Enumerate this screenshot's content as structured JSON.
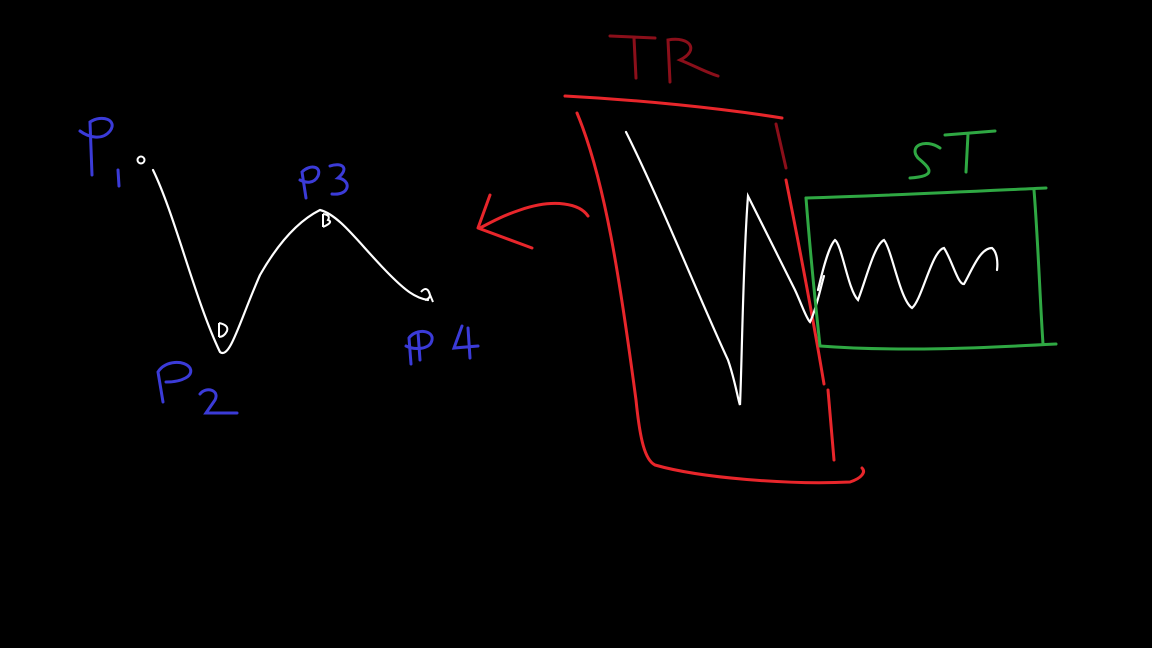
{
  "colors": {
    "background": "#000000",
    "curve": "#ffffff",
    "point_labels": "#3b3bd8",
    "tr_label": "#8b0f1a",
    "tr_box": "#e8262b",
    "arrow": "#e8262b",
    "st_label": "#2fa843",
    "st_box": "#2fa843"
  },
  "labels": {
    "p1": {
      "letter": "P",
      "index": "1"
    },
    "p2": {
      "letter": "P",
      "index": "2"
    },
    "p3": {
      "letter": "P",
      "index": "3"
    },
    "p4": {
      "letter": "P",
      "index": "4"
    },
    "tr": "TR",
    "st": "ST"
  }
}
